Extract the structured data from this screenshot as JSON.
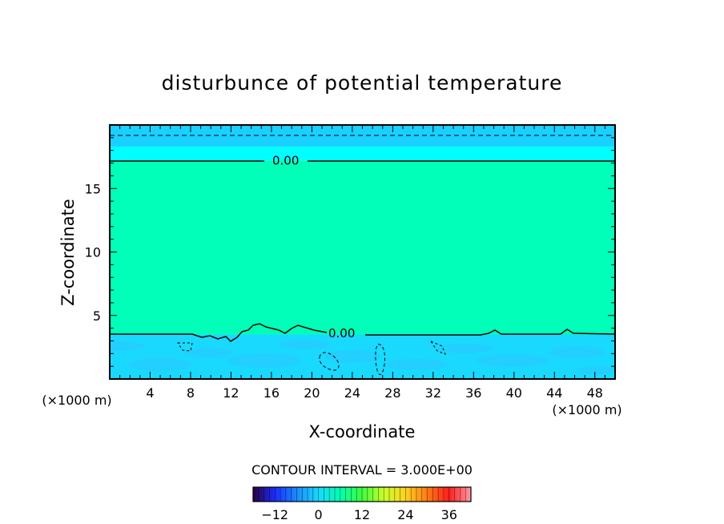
{
  "chart_data": {
    "type": "heatmap",
    "title": "disturbunce of potential temperature",
    "xlabel": "X-coordinate",
    "ylabel": "Z-coordinate",
    "x_unit": "(×1000 m)",
    "z_unit": "(×1000 m)",
    "xlim": [
      0,
      50
    ],
    "ylim": [
      0,
      20
    ],
    "x_ticks": [
      4,
      8,
      12,
      16,
      20,
      24,
      28,
      32,
      36,
      40,
      44,
      48
    ],
    "y_ticks": [
      5,
      10,
      15
    ],
    "layers": [
      {
        "z_from": 0,
        "z_to": 3.5,
        "value": -3,
        "color": "#19d9ff"
      },
      {
        "z_from": 3.5,
        "z_to": 17.2,
        "value": 1.5,
        "color": "#00ffb8"
      },
      {
        "z_from": 17.2,
        "z_to": 18.3,
        "value": -1.5,
        "color": "#00ffff"
      },
      {
        "z_from": 18.3,
        "z_to": 20,
        "value": -4.5,
        "color": "#19d0ff"
      }
    ],
    "contour_labels": [
      {
        "text": "0.00",
        "x": 14,
        "z": 17.2
      },
      {
        "text": "0.00",
        "x": 23,
        "z": 3.6
      }
    ],
    "contour_interval_text": "CONTOUR INTERVAL = 3.000E+00",
    "colorbar": {
      "min": -18,
      "max": 42,
      "tick_labels": [
        "-12",
        "0",
        "12",
        "24",
        "36"
      ],
      "tick_values": [
        -12,
        0,
        12,
        24,
        36
      ],
      "stops": [
        "#2a0040",
        "#1a2dff",
        "#1b8bff",
        "#18d9ff",
        "#00ffb0",
        "#3cff3c",
        "#c8ff28",
        "#ffd21e",
        "#ff7a14",
        "#ff1e1e",
        "#ff9aa8"
      ]
    },
    "grid": false
  }
}
